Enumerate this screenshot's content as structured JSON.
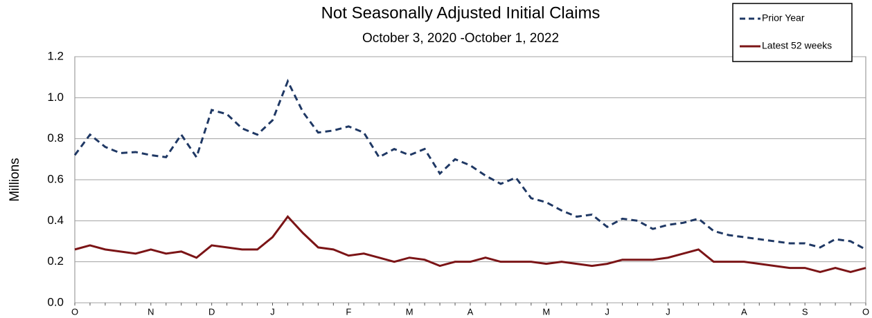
{
  "chart_data": {
    "type": "line",
    "title": "Not Seasonally Adjusted Initial Claims",
    "subtitle": "October 3, 2020 -October 1, 2022",
    "y_label": "Millions",
    "categories": [
      "O",
      null,
      null,
      null,
      null,
      "N",
      null,
      null,
      null,
      "D",
      null,
      null,
      null,
      "J",
      null,
      null,
      null,
      null,
      "F",
      null,
      null,
      null,
      "M",
      null,
      null,
      null,
      "A",
      null,
      null,
      null,
      null,
      "M",
      null,
      null,
      null,
      "J",
      null,
      null,
      null,
      "J",
      null,
      null,
      null,
      null,
      "A",
      null,
      null,
      null,
      "S",
      null,
      null,
      null,
      "O"
    ],
    "series": [
      {
        "name": "Prior Year",
        "color": "#1f3864",
        "dash": true,
        "values": [
          0.72,
          0.82,
          0.76,
          0.73,
          0.735,
          0.72,
          0.71,
          0.82,
          0.71,
          0.94,
          0.92,
          0.85,
          0.82,
          0.89,
          1.08,
          0.93,
          0.83,
          0.84,
          0.86,
          0.83,
          0.71,
          0.75,
          0.72,
          0.75,
          0.63,
          0.7,
          0.67,
          0.62,
          0.58,
          0.61,
          0.51,
          0.49,
          0.45,
          0.42,
          0.43,
          0.37,
          0.41,
          0.4,
          0.36,
          0.38,
          0.39,
          0.41,
          0.35,
          0.33,
          0.32,
          0.31,
          0.3,
          0.29,
          0.29,
          0.27,
          0.31,
          0.3,
          0.26
        ]
      },
      {
        "name": "Latest 52 weeks",
        "color": "#7b1416",
        "dash": false,
        "values": [
          0.26,
          0.28,
          0.26,
          0.25,
          0.24,
          0.26,
          0.24,
          0.25,
          0.22,
          0.28,
          0.27,
          0.26,
          0.26,
          0.32,
          0.42,
          0.34,
          0.27,
          0.26,
          0.23,
          0.24,
          0.22,
          0.2,
          0.22,
          0.21,
          0.18,
          0.2,
          0.2,
          0.22,
          0.2,
          0.2,
          0.2,
          0.19,
          0.2,
          0.19,
          0.18,
          0.19,
          0.21,
          0.21,
          0.21,
          0.22,
          0.24,
          0.26,
          0.2,
          0.2,
          0.2,
          0.19,
          0.18,
          0.17,
          0.17,
          0.15,
          0.17,
          0.15,
          0.17
        ]
      }
    ],
    "ylim": [
      0,
      1.2
    ],
    "yticks": [
      {
        "value": 0,
        "label": "0.0"
      },
      0.2,
      0.4,
      0.6,
      0.8,
      {
        "value": 1,
        "label": "1.0"
      },
      1.2
    ],
    "grid": true,
    "legend": "top-right"
  }
}
